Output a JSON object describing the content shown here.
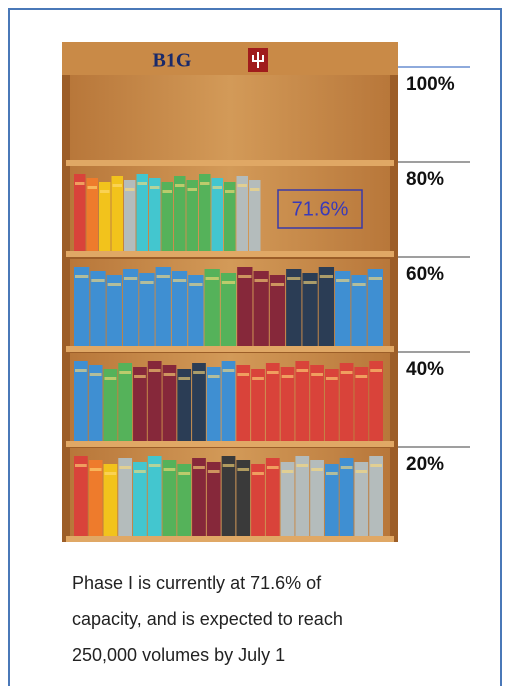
{
  "logo_text": "B1G",
  "scale": [
    {
      "value": 100,
      "label": "100%"
    },
    {
      "value": 80,
      "label": "80%"
    },
    {
      "value": 60,
      "label": "60%"
    },
    {
      "value": 40,
      "label": "40%"
    },
    {
      "value": 20,
      "label": "20%"
    }
  ],
  "current": {
    "value": 71.6,
    "label": "71.6%"
  },
  "caption_lines": [
    "Phase I is currently at 71.6% of",
    "capacity, and is expected to reach",
    "250,000 volumes by July 1"
  ]
}
